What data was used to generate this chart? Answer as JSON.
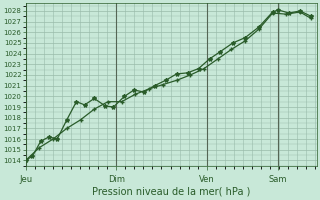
{
  "xlabel": "Pression niveau de la mer( hPa )",
  "background_color": "#c8e8d8",
  "plot_bg_color": "#c8e8d8",
  "grid_color": "#99bbaa",
  "line_color": "#2a5c2a",
  "vline_color": "#556655",
  "ylim": [
    1013.5,
    1028.7
  ],
  "xlim": [
    0,
    10.6
  ],
  "yticks": [
    1014,
    1015,
    1016,
    1017,
    1018,
    1019,
    1020,
    1021,
    1022,
    1023,
    1024,
    1025,
    1026,
    1027,
    1028
  ],
  "day_labels": [
    "Jeu",
    "Dim",
    "Ven",
    "Sam"
  ],
  "day_positions": [
    0.0,
    3.3,
    6.6,
    9.2
  ],
  "vline_positions": [
    0.0,
    3.3,
    6.6,
    9.2
  ],
  "line1_x": [
    0.0,
    0.25,
    0.55,
    0.85,
    1.15,
    1.5,
    1.85,
    2.15,
    2.5,
    2.9,
    3.2,
    3.6,
    3.95,
    4.3,
    4.7,
    5.1,
    5.5,
    5.9,
    6.3,
    6.7,
    7.1,
    7.55,
    8.0,
    8.5,
    9.0,
    9.2,
    9.6,
    10.0,
    10.4
  ],
  "line1_y": [
    1014.0,
    1014.4,
    1015.8,
    1016.2,
    1016.0,
    1017.8,
    1019.5,
    1019.2,
    1019.8,
    1019.1,
    1019.0,
    1020.0,
    1020.6,
    1020.4,
    1021.0,
    1021.5,
    1022.1,
    1022.2,
    1022.6,
    1023.5,
    1024.2,
    1025.0,
    1025.5,
    1026.5,
    1027.9,
    1028.1,
    1027.8,
    1028.0,
    1027.5
  ],
  "line2_x": [
    0.0,
    0.5,
    1.0,
    1.5,
    2.0,
    2.5,
    3.0,
    3.5,
    4.0,
    4.5,
    5.0,
    5.5,
    6.0,
    6.5,
    7.0,
    7.5,
    8.0,
    8.5,
    9.0,
    9.5,
    10.0,
    10.4
  ],
  "line2_y": [
    1014.0,
    1015.2,
    1016.0,
    1017.0,
    1017.8,
    1018.8,
    1019.5,
    1019.5,
    1020.2,
    1020.7,
    1021.1,
    1021.5,
    1022.0,
    1022.6,
    1023.5,
    1024.4,
    1025.2,
    1026.3,
    1027.8,
    1027.7,
    1027.9,
    1027.3
  ],
  "marker1": "*",
  "marker2": "+",
  "markersize1": 3.0,
  "markersize2": 3.5,
  "linewidth": 0.9,
  "xlabel_fontsize": 7,
  "tick_fontsize": 5,
  "day_fontsize": 6
}
